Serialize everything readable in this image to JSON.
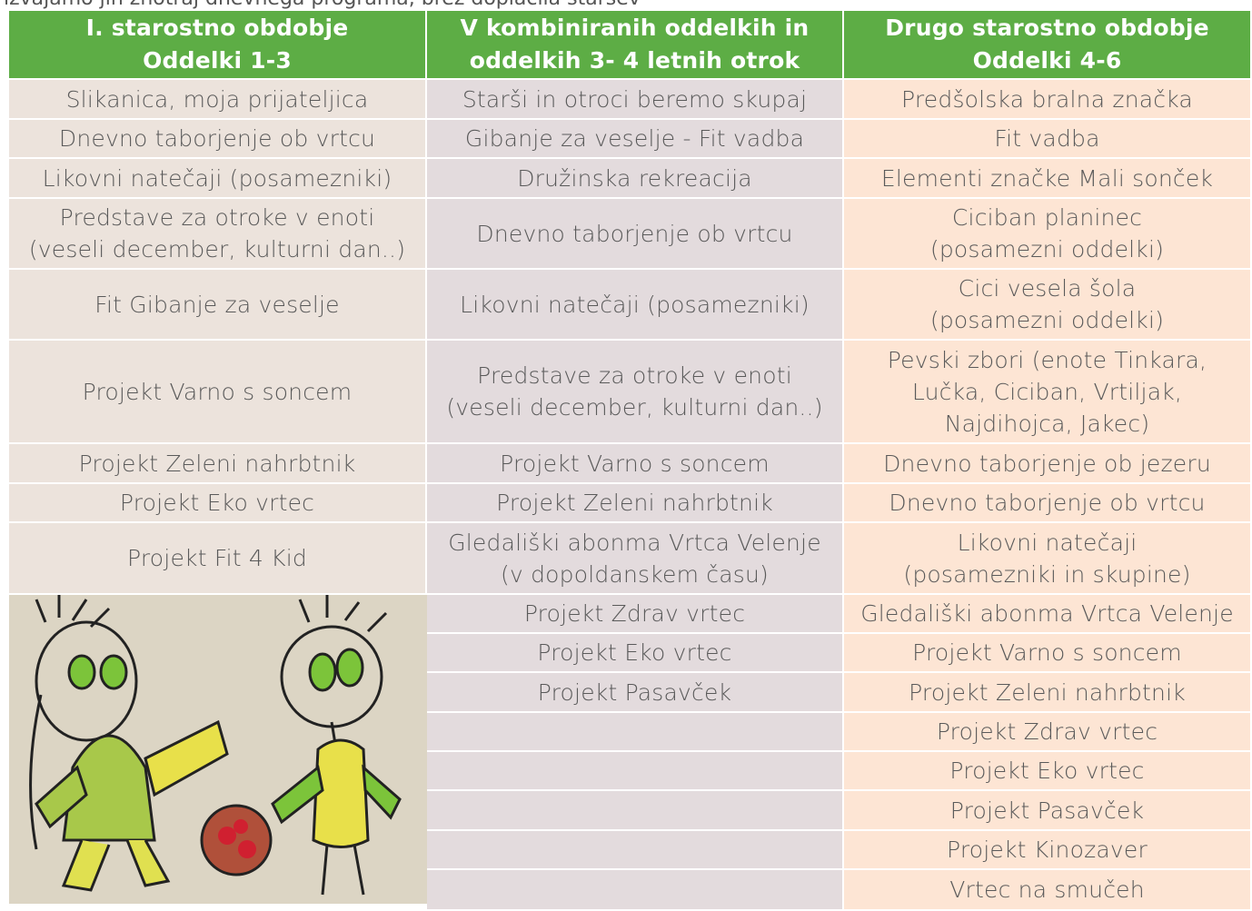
{
  "intro": "izvajamo jih znotraj dnevnega programa, brez doplačila staršev",
  "table": {
    "header": [
      "I. starostno obdobje\nOddelki 1-3",
      "V kombiniranih oddelkih in\noddelkih 3- 4 letnih otrok",
      "Drugo starostno obdobje\nOddelki 4-6"
    ],
    "columns": [
      [
        "Slikanica, moja prijateljica",
        "Dnevno taborjenje ob vrtcu",
        "Likovni natečaji (posamezniki)",
        "Predstave za otroke v enoti\n(veseli december, kulturni dan..)",
        "Fit Gibanje za veselje",
        "Projekt Varno s soncem",
        "Projekt Zeleni nahrbtnik",
        "Projekt Eko vrtec",
        "Projekt Fit 4 Kid"
      ],
      [
        "Starši in otroci beremo skupaj",
        "Gibanje za veselje -  Fit  vadba",
        "Družinska rekreacija",
        "Dnevno taborjenje ob vrtcu",
        "Likovni natečaji (posamezniki)",
        "Predstave za otroke v enoti\n(veseli december, kulturni dan..)",
        "Projekt Varno s soncem",
        "Projekt Zeleni nahrbtnik",
        "Gledališki abonma Vrtca Velenje\n(v dopoldanskem času)",
        "Projekt Zdrav vrtec",
        "Projekt Eko vrtec",
        "Projekt Pasavček"
      ],
      [
        "Predšolska bralna značka",
        "Fit  vadba",
        "Elementi značke Mali sonček",
        "Ciciban planinec\n(posamezni oddelki)",
        "Cici vesela šola\n(posamezni oddelki)",
        "Pevski zbori (enote Tinkara,\nLučka, Ciciban, Vrtiljak,\nNajdihojca, Jakec)",
        "Dnevno taborjenje ob jezeru",
        "Dnevno taborjenje ob vrtcu",
        "Likovni natečaji\n(posamezniki in skupine)",
        "Gledališki abonma Vrtca Velenje",
        "Projekt Varno s soncem",
        "Projekt Zeleni nahrbtnik",
        "Projekt Zdrav vrtec",
        "Projekt Eko vrtec",
        "Projekt Pasavček",
        "Projekt Kinozaver",
        "Vrtec na smučeh"
      ]
    ]
  }
}
